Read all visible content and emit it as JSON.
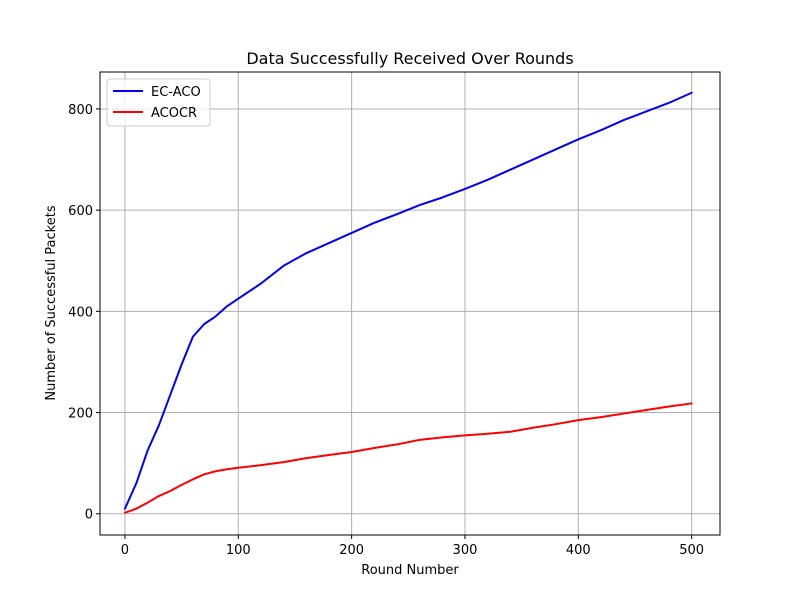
{
  "chart_data": {
    "type": "line",
    "title": "Data Successfully Received Over Rounds",
    "xlabel": "Round Number",
    "ylabel": "Number of Successful Packets",
    "xlim": [
      -22,
      525
    ],
    "ylim": [
      -42,
      873
    ],
    "xticks": [
      0,
      100,
      200,
      300,
      400,
      500
    ],
    "yticks": [
      0,
      200,
      400,
      600,
      800
    ],
    "grid": true,
    "legend_position": "top-left",
    "series": [
      {
        "name": "EC-ACO",
        "color": "#0000ff",
        "x": [
          0,
          10,
          20,
          30,
          40,
          50,
          60,
          70,
          80,
          90,
          100,
          120,
          140,
          160,
          180,
          200,
          220,
          240,
          260,
          280,
          300,
          320,
          340,
          360,
          380,
          400,
          420,
          440,
          460,
          480,
          500
        ],
        "values": [
          10,
          60,
          125,
          175,
          235,
          295,
          350,
          375,
          390,
          410,
          425,
          455,
          490,
          515,
          535,
          555,
          575,
          592,
          610,
          625,
          642,
          660,
          680,
          700,
          720,
          740,
          758,
          778,
          795,
          812,
          832
        ]
      },
      {
        "name": "ACOCR",
        "color": "#ff0000",
        "x": [
          0,
          10,
          20,
          30,
          40,
          50,
          60,
          70,
          80,
          90,
          100,
          120,
          140,
          160,
          180,
          200,
          220,
          240,
          260,
          280,
          300,
          320,
          340,
          360,
          380,
          400,
          420,
          440,
          460,
          480,
          500
        ],
        "values": [
          2,
          10,
          22,
          35,
          45,
          57,
          68,
          78,
          84,
          88,
          91,
          96,
          102,
          110,
          116,
          122,
          130,
          137,
          146,
          151,
          155,
          158,
          162,
          170,
          177,
          185,
          191,
          198,
          205,
          212,
          218
        ]
      }
    ]
  }
}
